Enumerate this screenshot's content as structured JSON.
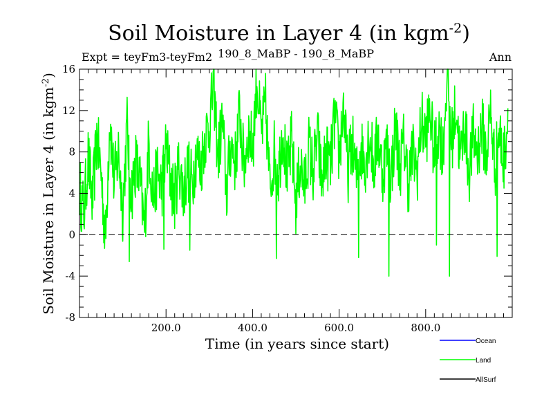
{
  "chart_data": {
    "type": "line",
    "title": "Soil Moisture in Layer 4 (in kgm",
    "title_sup": "-2",
    "title_close": ")",
    "subtitle_left": "Expt = teyFm3-teyFm2",
    "subtitle_center": "190_8_MaBP - 190_8_MaBP",
    "subtitle_right": "Ann",
    "xlabel": "Time (in years since start)",
    "ylabel": "Soil Moisture in Layer 4 (in kgm",
    "ylabel_sup": "-2",
    "ylabel_close": ")",
    "xlim": [
      0,
      1000
    ],
    "ylim": [
      -8,
      16
    ],
    "x_ticks": [
      200,
      400,
      600,
      800
    ],
    "x_tick_labels": [
      "200.0",
      "400.0",
      "600.0",
      "800.0"
    ],
    "y_ticks": [
      -8,
      -4,
      0,
      4,
      8,
      12,
      16
    ],
    "y_tick_labels": [
      "-8",
      "-4",
      "0",
      "4",
      "8",
      "12",
      "16"
    ],
    "reference_line": 0,
    "legend": [
      {
        "name": "Ocean",
        "color": "#0000ff"
      },
      {
        "name": "Land",
        "color": "#00ff00"
      },
      {
        "name": "AllSurf",
        "color": "#000000"
      }
    ],
    "series": [
      {
        "name": "Land",
        "color": "#00ff00",
        "x_start": 0,
        "x_step": 10,
        "values": [
          4.5,
          2.0,
          7.5,
          3.0,
          9.5,
          6.0,
          -0.5,
          11.5,
          5.0,
          8.0,
          2.5,
          10.5,
          4.0,
          7.0,
          5.0,
          0.5,
          9.0,
          3.5,
          6.0,
          4.5,
          8.5,
          5.5,
          3.5,
          7.0,
          4.0,
          6.5,
          5.0,
          8.0,
          6.5,
          9.5,
          10.5,
          14.5,
          7.5,
          11.0,
          4.0,
          9.0,
          7.0,
          12.0,
          6.5,
          10.0,
          8.5,
          15.0,
          9.5,
          12.5,
          4.5,
          8.0,
          6.0,
          10.5,
          5.5,
          9.0,
          3.0,
          7.0,
          4.5,
          8.5,
          6.0,
          9.5,
          5.0,
          8.0,
          6.5,
          11.5,
          7.5,
          12.5,
          6.0,
          9.0,
          5.5,
          8.5,
          7.0,
          10.0,
          6.5,
          9.5,
          6.0,
          8.5,
          5.5,
          10.5,
          6.5,
          9.0,
          5.0,
          8.0,
          6.0,
          11.0,
          9.5,
          12.0,
          7.5,
          10.5,
          8.0,
          16.0,
          9.0,
          12.5,
          7.0,
          11.0,
          6.0,
          9.5,
          8.0,
          10.5,
          7.5,
          12.0,
          6.5,
          10.0,
          7.0,
          11.5
        ],
        "dips": [
          [
            115,
            -2.6
          ],
          [
            195,
            -1.4
          ],
          [
            255,
            -1.5
          ],
          [
            455,
            -2.3
          ],
          [
            645,
            -2.2
          ],
          [
            715,
            -4.0
          ],
          [
            825,
            -1.0
          ],
          [
            855,
            -4.0
          ],
          [
            965,
            -2.1
          ]
        ]
      },
      {
        "name": "Ocean",
        "color": "#0000ff",
        "values": []
      },
      {
        "name": "AllSurf",
        "color": "#000000",
        "values": []
      }
    ]
  }
}
